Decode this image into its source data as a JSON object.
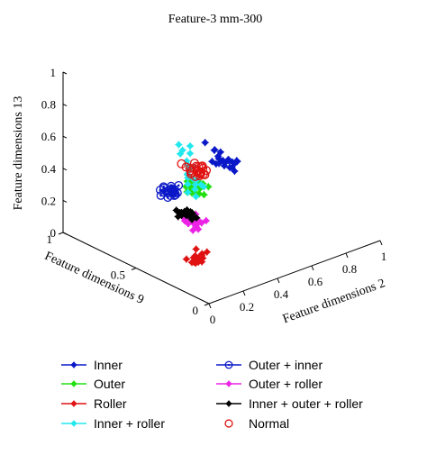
{
  "chart_data": {
    "type": "scatter",
    "projection": "3d",
    "title": "Feature-3 mm-300",
    "x_axis": {
      "label": "Feature dimensions 2",
      "ticks": [
        "0",
        "0.2",
        "0.4",
        "0.6",
        "0.8",
        "1"
      ],
      "range": [
        0,
        1
      ]
    },
    "y_axis": {
      "label": "Feature dimensions 9",
      "ticks": [
        "0",
        "0.5",
        "1"
      ],
      "range": [
        0,
        1
      ]
    },
    "z_axis": {
      "label": "Feature dimensions 13",
      "ticks": [
        "0",
        "0.2",
        "0.4",
        "0.6",
        "0.8",
        "1"
      ],
      "range": [
        0,
        1
      ]
    },
    "grid": false,
    "legend_position": "bottom",
    "series": [
      {
        "name": "Inner",
        "color": "#0a18c8",
        "marker": "diamond",
        "spread": 0.07,
        "points": [
          [
            0.74,
            0.86,
            0.3
          ],
          [
            0.78,
            0.84,
            0.2
          ],
          [
            0.86,
            0.86,
            0.16
          ],
          [
            0.9,
            0.9,
            0.12
          ]
        ]
      },
      {
        "name": "Outer",
        "color": "#22e012",
        "marker": "diamond",
        "spread": 0.05,
        "points": [
          [
            0.42,
            0.64,
            0.3
          ],
          [
            0.48,
            0.66,
            0.24
          ],
          [
            0.56,
            0.7,
            0.2
          ]
        ]
      },
      {
        "name": "Roller",
        "color": "#e01212",
        "marker": "diamond",
        "spread": 0.05,
        "points": [
          [
            0.05,
            0.15,
            0.2
          ],
          [
            0.1,
            0.2,
            0.15
          ],
          [
            0.17,
            0.25,
            0.1
          ]
        ]
      },
      {
        "name": "Inner + roller",
        "color": "#21e8ee",
        "marker": "diamond",
        "spread": 0.05,
        "points": [
          [
            0.1,
            0.3,
            0.8
          ],
          [
            0.16,
            0.32,
            0.66
          ],
          [
            0.22,
            0.36,
            0.54
          ],
          [
            0.28,
            0.4,
            0.4
          ]
        ]
      },
      {
        "name": "Outer + inner",
        "color": "#0a18c8",
        "marker": "circle-dot",
        "spread": 0.05,
        "points": [
          [
            0.32,
            0.66,
            0.3
          ],
          [
            0.36,
            0.66,
            0.26
          ],
          [
            0.38,
            0.72,
            0.22
          ]
        ]
      },
      {
        "name": "Outer + roller",
        "color": "#ec24e6",
        "marker": "diamond",
        "spread": 0.05,
        "points": [
          [
            0.26,
            0.46,
            0.24
          ],
          [
            0.32,
            0.48,
            0.18
          ],
          [
            0.38,
            0.5,
            0.12
          ]
        ]
      },
      {
        "name": "Inner + outer + roller",
        "color": "#000000",
        "marker": "diamond",
        "spread": 0.04,
        "points": [
          [
            0.34,
            0.6,
            0.16
          ],
          [
            0.4,
            0.62,
            0.12
          ],
          [
            0.46,
            0.66,
            0.08
          ]
        ]
      },
      {
        "name": "Normal",
        "color": "#e01212",
        "marker": "circle",
        "spread": 0.05,
        "points": [
          [
            0.64,
            0.88,
            0.22
          ],
          [
            0.7,
            0.88,
            0.16
          ],
          [
            0.74,
            0.9,
            0.12
          ]
        ]
      }
    ]
  }
}
